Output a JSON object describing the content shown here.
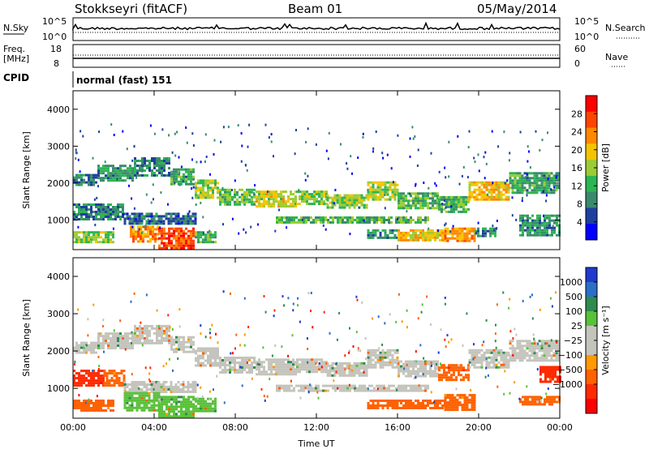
{
  "header": {
    "station": "Stokkseyri (fitACF)",
    "beam": "Beam 01",
    "date": "05/May/2014"
  },
  "status": {
    "nsky_label": "N.Sky",
    "nsearch_label": "N.Search",
    "noise_ticks": [
      "10^5",
      "10^0"
    ],
    "freq_label_1": "Freq.",
    "freq_label_2": "[MHz]",
    "freq_ticks": [
      "18",
      "8"
    ],
    "nave_label": "Nave",
    "nave_ticks": [
      "60",
      "0"
    ],
    "cpid_label": "CPID",
    "cpid_value": "normal (fast) 151"
  },
  "colors": {
    "power_scale": [
      "#0000ff",
      "#1f3f9f",
      "#3a8a6e",
      "#2db552",
      "#9ccc33",
      "#f5c400",
      "#ff8800",
      "#ff4400",
      "#ff0000"
    ],
    "velocity_scale": [
      "#1f3ad0",
      "#2b6fc8",
      "#2e8a4f",
      "#59c13a",
      "#c4c4bc",
      "#c4c4bc",
      "#ff9a00",
      "#ff6200",
      "#ff2a00",
      "#ff0000"
    ]
  },
  "chart_data": [
    {
      "type": "heatmap",
      "name": "power-panel",
      "ylabel": "Slant Range [km]",
      "xlabel": "",
      "xlim": [
        0,
        24
      ],
      "ylim": [
        200,
        4500
      ],
      "x_ticks": [
        "00:00",
        "04:00",
        "08:00",
        "12:00",
        "16:00",
        "20:00",
        "00:00"
      ],
      "y_ticks": [
        1000,
        2000,
        3000,
        4000
      ],
      "colorbar": {
        "label": "Power [dB]",
        "range": [
          0,
          32
        ],
        "ticks": [
          4,
          8,
          12,
          16,
          20,
          24,
          28
        ]
      },
      "bands": [
        {
          "x0": 0.0,
          "x1": 1.2,
          "y0": 1950,
          "y1": 2250,
          "value": 8
        },
        {
          "x0": 1.2,
          "x1": 3.0,
          "y0": 2100,
          "y1": 2500,
          "value": 10
        },
        {
          "x0": 3.0,
          "x1": 4.8,
          "y0": 2200,
          "y1": 2700,
          "value": 9
        },
        {
          "x0": 4.8,
          "x1": 6.0,
          "y0": 2000,
          "y1": 2400,
          "value": 11
        },
        {
          "x0": 6.0,
          "x1": 7.2,
          "y0": 1600,
          "y1": 2100,
          "value": 16
        },
        {
          "x0": 7.2,
          "x1": 9.0,
          "y0": 1450,
          "y1": 1850,
          "value": 14
        },
        {
          "x0": 9.0,
          "x1": 11.0,
          "y0": 1400,
          "y1": 1800,
          "value": 18
        },
        {
          "x0": 11.0,
          "x1": 12.5,
          "y0": 1450,
          "y1": 1800,
          "value": 15
        },
        {
          "x0": 12.5,
          "x1": 14.5,
          "y0": 1350,
          "y1": 1700,
          "value": 15
        },
        {
          "x0": 14.5,
          "x1": 16.0,
          "y0": 1550,
          "y1": 2050,
          "value": 17
        },
        {
          "x0": 16.0,
          "x1": 18.0,
          "y0": 1350,
          "y1": 1750,
          "value": 13
        },
        {
          "x0": 18.0,
          "x1": 19.5,
          "y0": 1250,
          "y1": 1650,
          "value": 12
        },
        {
          "x0": 19.5,
          "x1": 21.5,
          "y0": 1550,
          "y1": 2050,
          "value": 20
        },
        {
          "x0": 21.5,
          "x1": 24.0,
          "y0": 1750,
          "y1": 2300,
          "value": 11
        },
        {
          "x0": 0.0,
          "x1": 2.5,
          "y0": 1000,
          "y1": 1450,
          "value": 9
        },
        {
          "x0": 2.5,
          "x1": 6.0,
          "y0": 900,
          "y1": 1200,
          "value": 7
        },
        {
          "x0": 10.0,
          "x1": 17.5,
          "y0": 950,
          "y1": 1100,
          "value": 13
        },
        {
          "x0": 0.0,
          "x1": 2.0,
          "y0": 400,
          "y1": 700,
          "value": 15
        },
        {
          "x0": 2.8,
          "x1": 4.2,
          "y0": 400,
          "y1": 850,
          "value": 23
        },
        {
          "x0": 4.2,
          "x1": 6.0,
          "y0": 250,
          "y1": 800,
          "value": 27
        },
        {
          "x0": 6.0,
          "x1": 7.0,
          "y0": 400,
          "y1": 700,
          "value": 12
        },
        {
          "x0": 14.5,
          "x1": 16.0,
          "y0": 500,
          "y1": 750,
          "value": 10
        },
        {
          "x0": 16.0,
          "x1": 18.3,
          "y0": 450,
          "y1": 750,
          "value": 20
        },
        {
          "x0": 18.3,
          "x1": 19.8,
          "y0": 450,
          "y1": 800,
          "value": 22
        },
        {
          "x0": 19.8,
          "x1": 20.8,
          "y0": 550,
          "y1": 800,
          "value": 10
        },
        {
          "x0": 22.0,
          "x1": 24.0,
          "y0": 600,
          "y1": 1150,
          "value": 10
        }
      ]
    },
    {
      "type": "heatmap",
      "name": "velocity-panel",
      "ylabel": "Slant Range [km]",
      "xlabel": "Time UT",
      "xlim": [
        0,
        24
      ],
      "ylim": [
        200,
        4500
      ],
      "x_ticks": [
        "00:00",
        "04:00",
        "08:00",
        "12:00",
        "16:00",
        "20:00",
        "00:00"
      ],
      "y_ticks": [
        1000,
        2000,
        3000,
        4000
      ],
      "colorbar": {
        "label": "Velocity [m s⁻¹]",
        "ticks": [
          "1000",
          "500",
          "100",
          "25",
          "−25",
          "−100",
          "−500",
          "−1000"
        ]
      },
      "bands": [
        {
          "x0": 0.0,
          "x1": 1.2,
          "y0": 1950,
          "y1": 2250,
          "value": 0
        },
        {
          "x0": 1.2,
          "x1": 3.0,
          "y0": 2100,
          "y1": 2500,
          "value": 0
        },
        {
          "x0": 3.0,
          "x1": 4.8,
          "y0": 2200,
          "y1": 2700,
          "value": 0
        },
        {
          "x0": 4.8,
          "x1": 6.0,
          "y0": 2000,
          "y1": 2400,
          "value": 0
        },
        {
          "x0": 6.0,
          "x1": 7.2,
          "y0": 1600,
          "y1": 2100,
          "value": 0
        },
        {
          "x0": 7.2,
          "x1": 9.0,
          "y0": 1450,
          "y1": 1850,
          "value": 0
        },
        {
          "x0": 9.0,
          "x1": 11.0,
          "y0": 1400,
          "y1": 1800,
          "value": 0
        },
        {
          "x0": 11.0,
          "x1": 12.5,
          "y0": 1450,
          "y1": 1800,
          "value": 0
        },
        {
          "x0": 12.5,
          "x1": 14.5,
          "y0": 1350,
          "y1": 1700,
          "value": 0
        },
        {
          "x0": 14.5,
          "x1": 16.0,
          "y0": 1550,
          "y1": 2050,
          "value": 0
        },
        {
          "x0": 16.0,
          "x1": 18.0,
          "y0": 1350,
          "y1": 1750,
          "value": 0
        },
        {
          "x0": 18.0,
          "x1": 19.5,
          "y0": 1250,
          "y1": 1650,
          "value": -300
        },
        {
          "x0": 19.5,
          "x1": 21.5,
          "y0": 1550,
          "y1": 2050,
          "value": 0
        },
        {
          "x0": 21.5,
          "x1": 24.0,
          "y0": 1750,
          "y1": 2300,
          "value": 0
        },
        {
          "x0": 0.0,
          "x1": 1.5,
          "y0": 1050,
          "y1": 1500,
          "value": -800
        },
        {
          "x0": 1.5,
          "x1": 2.5,
          "y0": 1100,
          "y1": 1500,
          "value": -200
        },
        {
          "x0": 2.5,
          "x1": 6.0,
          "y0": 900,
          "y1": 1200,
          "value": 0
        },
        {
          "x0": 10.0,
          "x1": 17.5,
          "y0": 950,
          "y1": 1100,
          "value": 0
        },
        {
          "x0": 0.0,
          "x1": 2.0,
          "y0": 400,
          "y1": 700,
          "value": -250
        },
        {
          "x0": 2.5,
          "x1": 4.2,
          "y0": 400,
          "y1": 900,
          "value": 60
        },
        {
          "x0": 4.2,
          "x1": 6.0,
          "y0": 250,
          "y1": 800,
          "value": 60
        },
        {
          "x0": 6.0,
          "x1": 7.0,
          "y0": 400,
          "y1": 750,
          "value": 50
        },
        {
          "x0": 14.5,
          "x1": 16.0,
          "y0": 450,
          "y1": 700,
          "value": -200
        },
        {
          "x0": 16.0,
          "x1": 18.3,
          "y0": 450,
          "y1": 700,
          "value": -300
        },
        {
          "x0": 18.3,
          "x1": 19.8,
          "y0": 450,
          "y1": 850,
          "value": -250
        },
        {
          "x0": 22.0,
          "x1": 24.0,
          "y0": 550,
          "y1": 800,
          "value": -250
        },
        {
          "x0": 23.0,
          "x1": 24.0,
          "y0": 1200,
          "y1": 1600,
          "value": -700
        }
      ]
    }
  ]
}
